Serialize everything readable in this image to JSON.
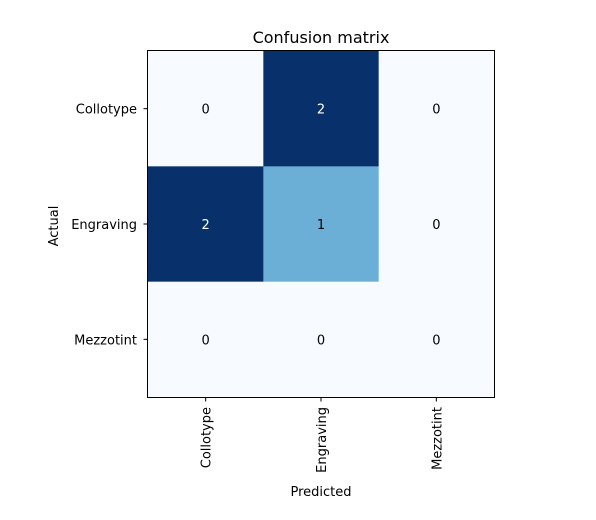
{
  "chart_data": {
    "type": "heatmap",
    "title": "Confusion matrix",
    "xlabel": "Predicted",
    "ylabel": "Actual",
    "row_labels": [
      "Collotype",
      "Engraving",
      "Mezzotint"
    ],
    "col_labels": [
      "Collotype",
      "Engraving",
      "Mezzotint"
    ],
    "values": [
      [
        0,
        2,
        0
      ],
      [
        2,
        1,
        0
      ],
      [
        0,
        0,
        0
      ]
    ],
    "colormap": "Blues",
    "color_min": "#f7fbff",
    "color_mid": "#6baed6",
    "color_max": "#08306b",
    "vmin": 0,
    "vmax": 2,
    "grid": false
  }
}
